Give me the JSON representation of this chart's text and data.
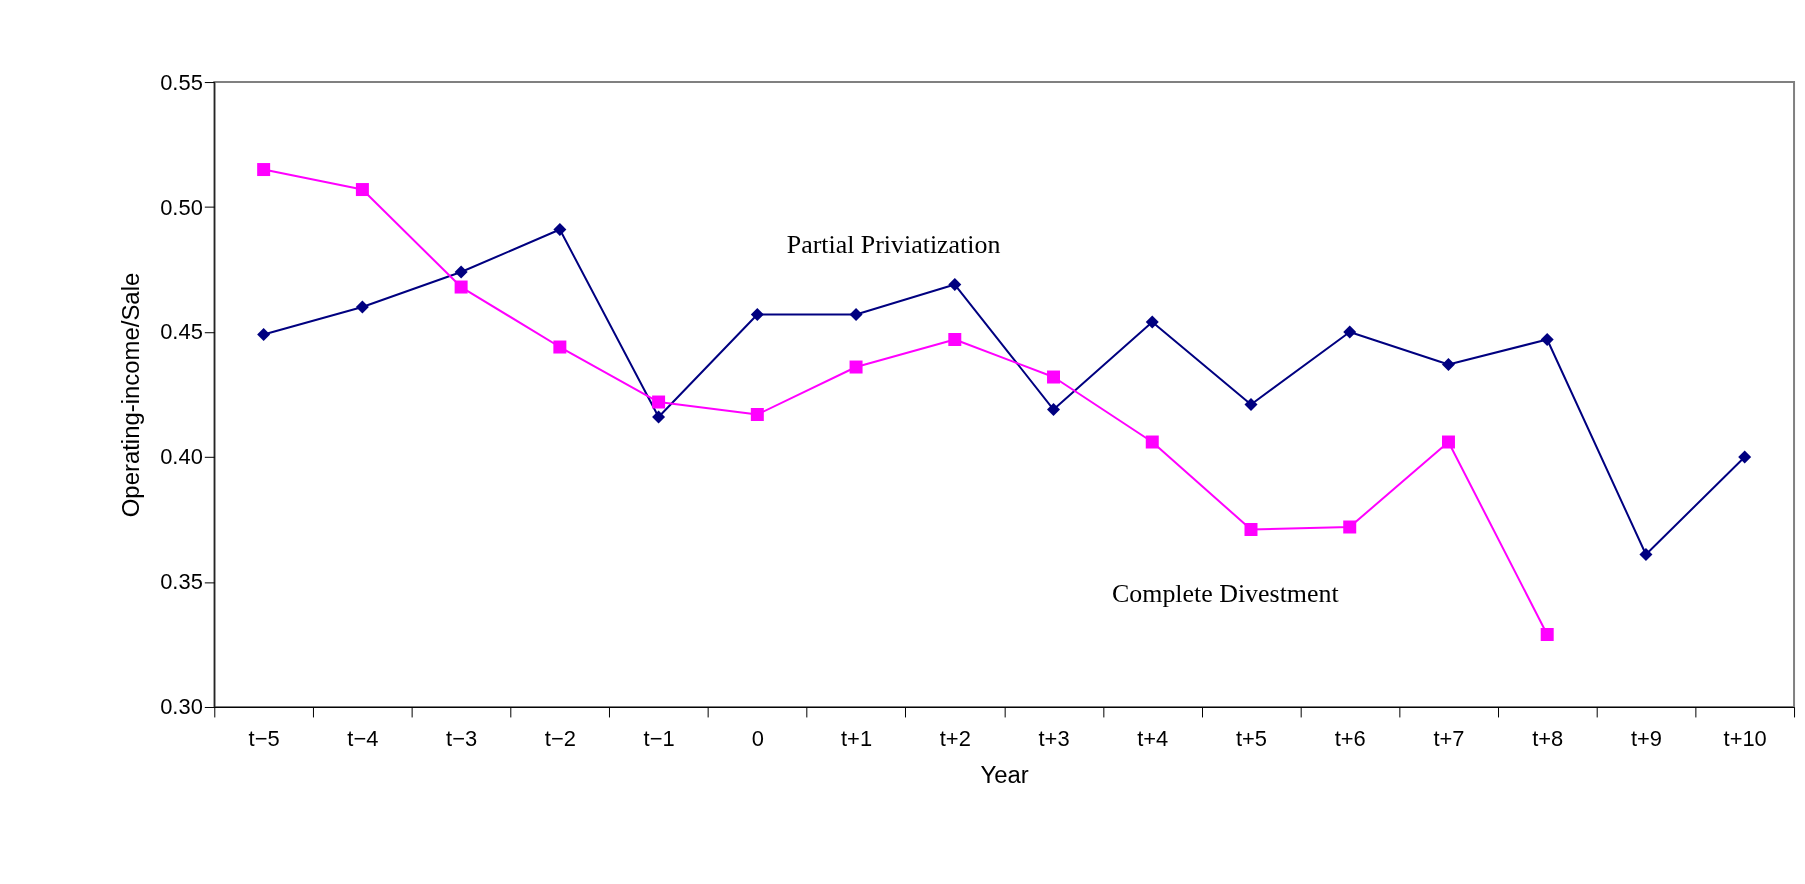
{
  "chart_data": {
    "type": "line",
    "xlabel": "Year",
    "ylabel": "Operating-income/Sale",
    "categories": [
      "t−5",
      "t−4",
      "t−3",
      "t−2",
      "t−1",
      "0",
      "t+1",
      "t+2",
      "t+3",
      "t+4",
      "t+5",
      "t+6",
      "t+7",
      "t+8",
      "t+9",
      "t+10"
    ],
    "series": [
      {
        "name": "Partial Priviatization",
        "color": "#000080",
        "marker": "diamond",
        "values": [
          0.449,
          0.46,
          0.474,
          0.491,
          0.416,
          0.457,
          0.457,
          0.469,
          0.419,
          0.454,
          0.421,
          0.45,
          0.437,
          0.447,
          0.361,
          0.4
        ]
      },
      {
        "name": "Complete Divestment",
        "color": "#ff00ff",
        "marker": "square",
        "values": [
          0.515,
          0.507,
          0.468,
          0.444,
          0.422,
          0.417,
          0.436,
          0.447,
          0.432,
          0.406,
          0.371,
          0.372,
          0.406,
          0.329,
          null,
          null
        ]
      }
    ],
    "ylim": [
      0.3,
      0.55
    ],
    "yticks": [
      {
        "value": 0.3,
        "label": "0.30"
      },
      {
        "value": 0.35,
        "label": "0.35"
      },
      {
        "value": 0.4,
        "label": "0.40"
      },
      {
        "value": 0.45,
        "label": "0.45"
      },
      {
        "value": 0.5,
        "label": "0.50"
      },
      {
        "value": 0.55,
        "label": "0.55"
      }
    ],
    "grid": false
  }
}
